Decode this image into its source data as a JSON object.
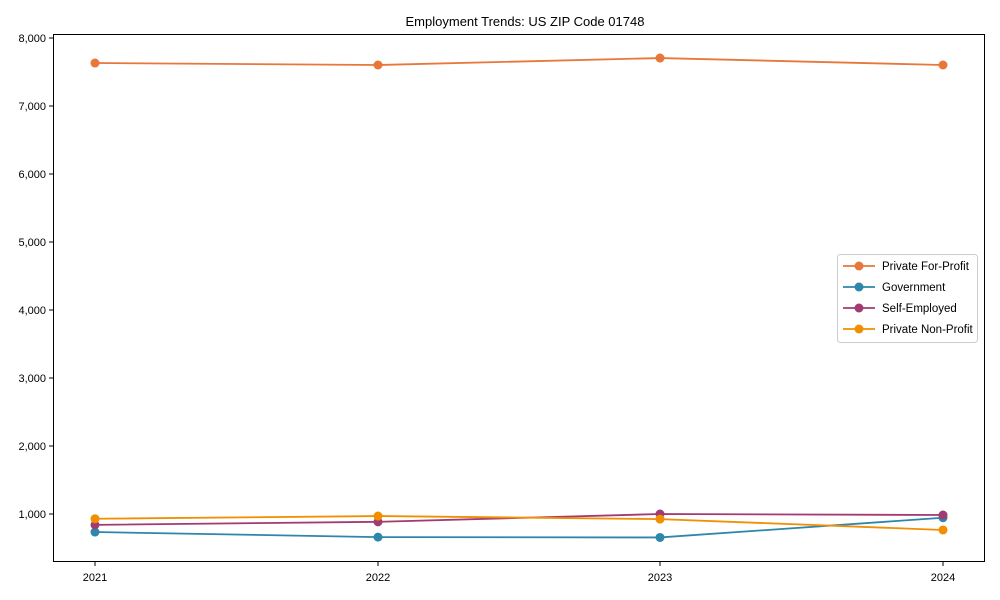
{
  "chart_data": {
    "type": "line",
    "title": "Employment Trends: US ZIP Code 01748",
    "xlabel": "",
    "ylabel": "",
    "categories": [
      "2021",
      "2022",
      "2023",
      "2024"
    ],
    "ylim": [
      300,
      8050
    ],
    "yticks": [
      1000,
      2000,
      3000,
      4000,
      5000,
      6000,
      7000,
      8000
    ],
    "ytick_labels": [
      "1,000",
      "2,000",
      "3,000",
      "4,000",
      "5,000",
      "6,000",
      "7,000",
      "8,000"
    ],
    "grid": false,
    "legend_position": "center right",
    "series": [
      {
        "name": "Private For-Profit",
        "color": "#E8773A",
        "values": [
          7632,
          7603,
          7705,
          7603
        ]
      },
      {
        "name": "Government",
        "color": "#2E86AB",
        "values": [
          735,
          660,
          655,
          945
        ]
      },
      {
        "name": "Self-Employed",
        "color": "#A23B72",
        "values": [
          840,
          885,
          1000,
          985
        ]
      },
      {
        "name": "Private Non-Profit",
        "color": "#F18F01",
        "values": [
          930,
          970,
          925,
          765
        ]
      }
    ]
  }
}
